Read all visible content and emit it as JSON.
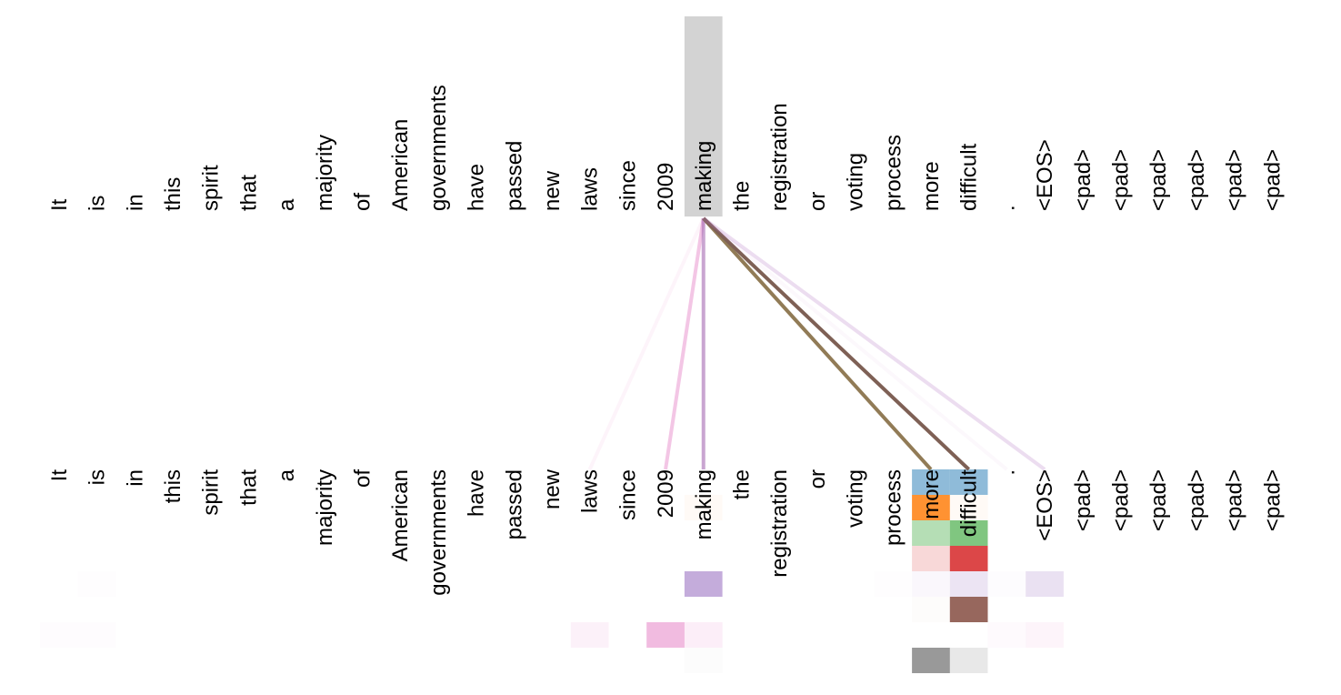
{
  "tokens": [
    "It",
    "is",
    "in",
    "this",
    "spirit",
    "that",
    "a",
    "majority",
    "of",
    "American",
    "governments",
    "have",
    "passed",
    "new",
    "laws",
    "since",
    "2009",
    "making",
    "the",
    "registration",
    "or",
    "voting",
    "process",
    "more",
    "difficult",
    ".",
    "<EOS>",
    "<pad>",
    "<pad>",
    "<pad>",
    "<pad>",
    "<pad>",
    "<pad>"
  ],
  "query_token_index": 17,
  "highlight_color": "#d3d3d3",
  "head_colors": [
    "#1f77b4",
    "#ff7f0e",
    "#2ca02c",
    "#d62728",
    "#9467bd",
    "#8c564b",
    "#e377c2",
    "#7f7f7f"
  ],
  "attention": [
    {
      "head": 0,
      "to": 23,
      "weight": 0.5
    },
    {
      "head": 0,
      "to": 24,
      "weight": 0.5
    },
    {
      "head": 1,
      "to": 17,
      "weight": 0.04
    },
    {
      "head": 1,
      "to": 23,
      "weight": 0.85
    },
    {
      "head": 1,
      "to": 24,
      "weight": 0.04
    },
    {
      "head": 2,
      "to": 23,
      "weight": 0.35
    },
    {
      "head": 2,
      "to": 24,
      "weight": 0.6
    },
    {
      "head": 3,
      "to": 23,
      "weight": 0.18
    },
    {
      "head": 3,
      "to": 24,
      "weight": 0.85
    },
    {
      "head": 4,
      "to": 1,
      "weight": 0.01
    },
    {
      "head": 4,
      "to": 17,
      "weight": 0.55
    },
    {
      "head": 4,
      "to": 22,
      "weight": 0.01
    },
    {
      "head": 4,
      "to": 23,
      "weight": 0.05
    },
    {
      "head": 4,
      "to": 24,
      "weight": 0.18
    },
    {
      "head": 4,
      "to": 25,
      "weight": 0.02
    },
    {
      "head": 4,
      "to": 26,
      "weight": 0.2
    },
    {
      "head": 5,
      "to": 23,
      "weight": 0.02
    },
    {
      "head": 5,
      "to": 24,
      "weight": 0.9
    },
    {
      "head": 6,
      "to": 0,
      "weight": 0.02
    },
    {
      "head": 6,
      "to": 1,
      "weight": 0.02
    },
    {
      "head": 6,
      "to": 14,
      "weight": 0.1
    },
    {
      "head": 6,
      "to": 16,
      "weight": 0.5
    },
    {
      "head": 6,
      "to": 17,
      "weight": 0.12
    },
    {
      "head": 6,
      "to": 25,
      "weight": 0.04
    },
    {
      "head": 6,
      "to": 26,
      "weight": 0.08
    },
    {
      "head": 7,
      "to": 17,
      "weight": 0.02
    },
    {
      "head": 7,
      "to": 23,
      "weight": 0.8
    },
    {
      "head": 7,
      "to": 24,
      "weight": 0.18
    }
  ]
}
